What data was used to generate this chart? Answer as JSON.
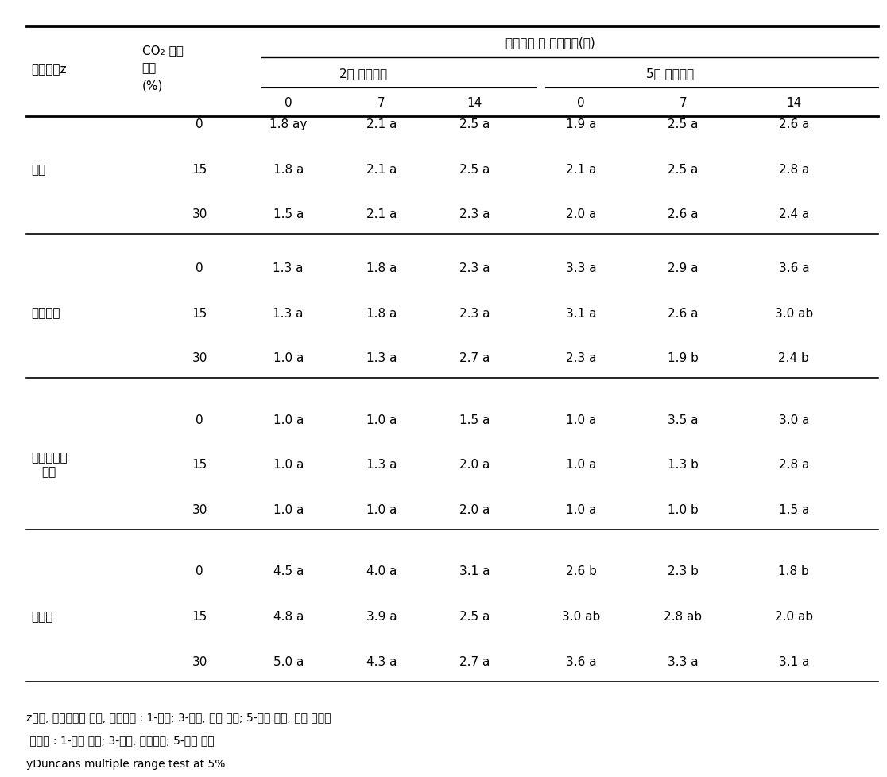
{
  "title": "모의선적 후 유통기간(일)",
  "col_header_row1": [
    "",
    "CO₂ 처리\n농도\n(%)",
    "2주 모의선적",
    "",
    "",
    "5주 모의선적",
    "",
    ""
  ],
  "col_header_row2": [
    "품질지표z",
    "CO₂ 처리\n농도\n(%)",
    "0",
    "7",
    "14",
    "0",
    "7",
    "14"
  ],
  "sections": [
    {
      "label": "이취",
      "rows": [
        {
          "co2": "0",
          "vals": [
            "1.8 ay",
            "2.1 a",
            "2.5 a",
            "1.9 a",
            "2.5 a",
            "2.6 a"
          ]
        },
        {
          "co2": "15",
          "vals": [
            "1.8 a",
            "2.1 a",
            "2.5 a",
            "2.1 a",
            "2.5 a",
            "2.8 a"
          ]
        },
        {
          "co2": "30",
          "vals": [
            "1.5 a",
            "2.1 a",
            "2.3 a",
            "2.0 a",
            "2.6 a",
            "2.4 a"
          ]
        }
      ]
    },
    {
      "label": "갈변정도",
      "rows": [
        {
          "co2": "0",
          "vals": [
            "1.3 a",
            "1.8 a",
            "2.3 a",
            "3.3 a",
            "2.9 a",
            "3.6 a"
          ]
        },
        {
          "co2": "15",
          "vals": [
            "1.3 a",
            "1.8 a",
            "2.3 a",
            "3.1 a",
            "2.6 a",
            "3.0 ab"
          ]
        },
        {
          "co2": "30",
          "vals": [
            "1.0 a",
            "1.3 a",
            "2.7 a",
            "2.3 a",
            "1.9 b",
            "2.4 b"
          ]
        }
      ]
    },
    {
      "label": "조직물러짐\n정도",
      "rows": [
        {
          "co2": "0",
          "vals": [
            "1.0 a",
            "1.0 a",
            "1.5 a",
            "1.0 a",
            "3.5 a",
            "3.0 a"
          ]
        },
        {
          "co2": "15",
          "vals": [
            "1.0 a",
            "1.3 a",
            "2.0 a",
            "1.0 a",
            "1.3 b",
            "2.8 a"
          ]
        },
        {
          "co2": "30",
          "vals": [
            "1.0 a",
            "1.0 a",
            "2.0 a",
            "1.0 a",
            "1.0 b",
            "1.5 a"
          ]
        }
      ]
    },
    {
      "label": "상품성",
      "rows": [
        {
          "co2": "0",
          "vals": [
            "4.5 a",
            "4.0 a",
            "3.1 a",
            "2.6 b",
            "2.3 b",
            "1.8 b"
          ]
        },
        {
          "co2": "15",
          "vals": [
            "4.8 a",
            "3.9 a",
            "2.5 a",
            "3.0 ab",
            "2.8 ab",
            "2.0 ab"
          ]
        },
        {
          "co2": "30",
          "vals": [
            "5.0 a",
            "4.3 a",
            "2.7 a",
            "3.6 a",
            "3.3 a",
            "3.1 a"
          ]
        }
      ]
    }
  ],
  "footnotes": [
    "z이취, 조직물러짐 정도, 갈변정도 : 1-없음; 3-보통, 판매 가능; 5-아주 심함, 판매 불가능",
    " 상품성 : 1-아주 나쁨; 3-보통, 판매가능; 5-아주 좋음",
    "yDuncans multiple range test at 5%"
  ]
}
